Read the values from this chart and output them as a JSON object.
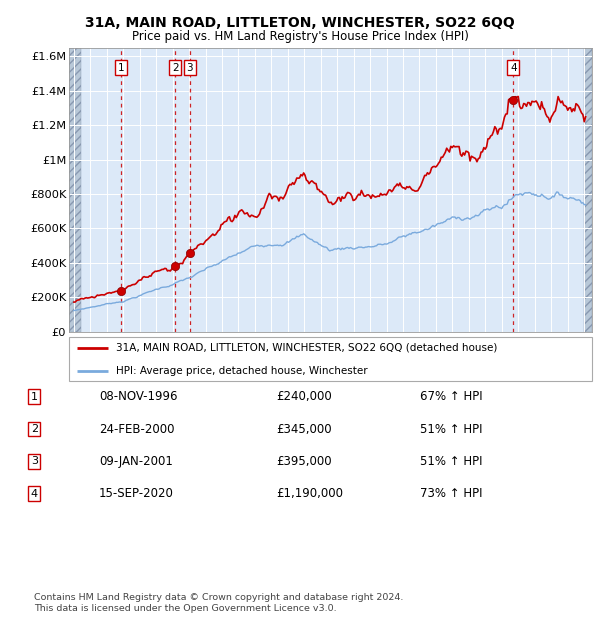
{
  "title": "31A, MAIN ROAD, LITTLETON, WINCHESTER, SO22 6QQ",
  "subtitle": "Price paid vs. HM Land Registry's House Price Index (HPI)",
  "ylim": [
    0,
    1650000
  ],
  "yticks": [
    0,
    200000,
    400000,
    600000,
    800000,
    1000000,
    1200000,
    1400000,
    1600000
  ],
  "ytick_labels": [
    "£0",
    "£200K",
    "£400K",
    "£600K",
    "£800K",
    "£1M",
    "£1.2M",
    "£1.4M",
    "£1.6M"
  ],
  "xlim_start": 1993.7,
  "xlim_end": 2025.5,
  "hatch_left_end": 1994.4,
  "hatch_right_start": 2025.0,
  "background_color": "#dce9f8",
  "hatch_color": "#b8c8d8",
  "grid_color": "#ffffff",
  "line_color_red": "#cc0000",
  "line_color_blue": "#7aaadd",
  "annotation_border_color": "#cc0000",
  "transactions": [
    {
      "num": 1,
      "date_str": "08-NOV-1996",
      "date_dec": 1996.86,
      "price": 240000,
      "pct": "67%",
      "dir": "↑"
    },
    {
      "num": 2,
      "date_str": "24-FEB-2000",
      "date_dec": 2000.15,
      "price": 345000,
      "pct": "51%",
      "dir": "↑"
    },
    {
      "num": 3,
      "date_str": "09-JAN-2001",
      "date_dec": 2001.03,
      "price": 395000,
      "pct": "51%",
      "dir": "↑"
    },
    {
      "num": 4,
      "date_str": "15-SEP-2020",
      "date_dec": 2020.71,
      "price": 1190000,
      "pct": "73%",
      "dir": "↑"
    }
  ],
  "footer_lines": [
    "Contains HM Land Registry data © Crown copyright and database right 2024.",
    "This data is licensed under the Open Government Licence v3.0."
  ],
  "legend_entries": [
    "31A, MAIN ROAD, LITTLETON, WINCHESTER, SO22 6QQ (detached house)",
    "HPI: Average price, detached house, Winchester"
  ]
}
